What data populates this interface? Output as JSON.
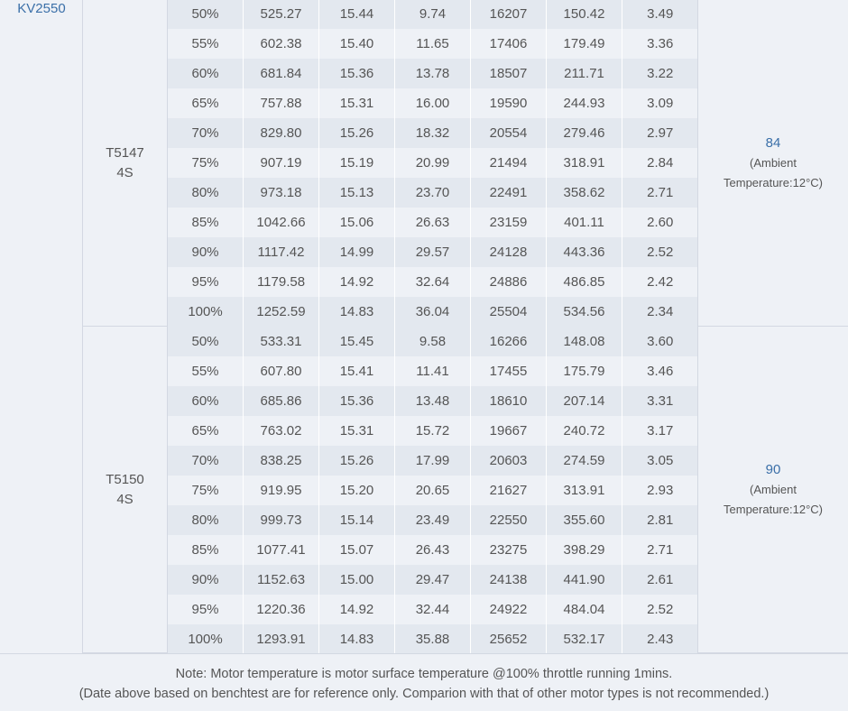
{
  "motor": "KV2550",
  "groups": [
    {
      "prop": "T5147",
      "cells": "4S",
      "temp_value": "84",
      "temp_note_1": "(Ambient",
      "temp_note_2": "Temperature:12°C)",
      "rows": [
        [
          "50%",
          "525.27",
          "15.44",
          "9.74",
          "16207",
          "150.42",
          "3.49"
        ],
        [
          "55%",
          "602.38",
          "15.40",
          "11.65",
          "17406",
          "179.49",
          "3.36"
        ],
        [
          "60%",
          "681.84",
          "15.36",
          "13.78",
          "18507",
          "211.71",
          "3.22"
        ],
        [
          "65%",
          "757.88",
          "15.31",
          "16.00",
          "19590",
          "244.93",
          "3.09"
        ],
        [
          "70%",
          "829.80",
          "15.26",
          "18.32",
          "20554",
          "279.46",
          "2.97"
        ],
        [
          "75%",
          "907.19",
          "15.19",
          "20.99",
          "21494",
          "318.91",
          "2.84"
        ],
        [
          "80%",
          "973.18",
          "15.13",
          "23.70",
          "22491",
          "358.62",
          "2.71"
        ],
        [
          "85%",
          "1042.66",
          "15.06",
          "26.63",
          "23159",
          "401.11",
          "2.60"
        ],
        [
          "90%",
          "1117.42",
          "14.99",
          "29.57",
          "24128",
          "443.36",
          "2.52"
        ],
        [
          "95%",
          "1179.58",
          "14.92",
          "32.64",
          "24886",
          "486.85",
          "2.42"
        ],
        [
          "100%",
          "1252.59",
          "14.83",
          "36.04",
          "25504",
          "534.56",
          "2.34"
        ]
      ]
    },
    {
      "prop": "T5150",
      "cells": "4S",
      "temp_value": "90",
      "temp_note_1": "(Ambient",
      "temp_note_2": "Temperature:12°C)",
      "rows": [
        [
          "50%",
          "533.31",
          "15.45",
          "9.58",
          "16266",
          "148.08",
          "3.60"
        ],
        [
          "55%",
          "607.80",
          "15.41",
          "11.41",
          "17455",
          "175.79",
          "3.46"
        ],
        [
          "60%",
          "685.86",
          "15.36",
          "13.48",
          "18610",
          "207.14",
          "3.31"
        ],
        [
          "65%",
          "763.02",
          "15.31",
          "15.72",
          "19667",
          "240.72",
          "3.17"
        ],
        [
          "70%",
          "838.25",
          "15.26",
          "17.99",
          "20603",
          "274.59",
          "3.05"
        ],
        [
          "75%",
          "919.95",
          "15.20",
          "20.65",
          "21627",
          "313.91",
          "2.93"
        ],
        [
          "80%",
          "999.73",
          "15.14",
          "23.49",
          "22550",
          "355.60",
          "2.81"
        ],
        [
          "85%",
          "1077.41",
          "15.07",
          "26.43",
          "23275",
          "398.29",
          "2.71"
        ],
        [
          "90%",
          "1152.63",
          "15.00",
          "29.47",
          "24138",
          "441.90",
          "2.61"
        ],
        [
          "95%",
          "1220.36",
          "14.92",
          "32.44",
          "24922",
          "484.04",
          "2.52"
        ],
        [
          "100%",
          "1293.91",
          "14.83",
          "35.88",
          "25652",
          "532.17",
          "2.43"
        ]
      ]
    }
  ],
  "footer": {
    "line1": "Note: Motor temperature is motor surface temperature @100% throttle running 1mins.",
    "line2": "(Date above based on benchtest are for reference only. Comparion with that of other motor types is not recommended.)"
  }
}
